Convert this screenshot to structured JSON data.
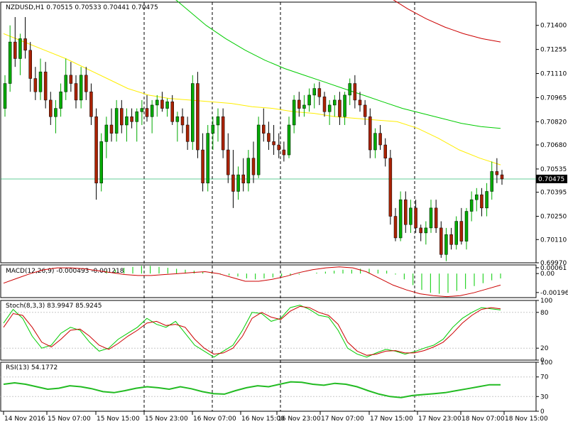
{
  "header": {
    "symbol": "NZDUSD,H1",
    "ohlc": "0.70515 0.70533 0.70441 0.70475"
  },
  "colors": {
    "background": "#ffffff",
    "axis": "#000000",
    "bull_candle": "#00aa00",
    "bear_candle": "#aa2200",
    "wick": "#000000",
    "ma_fast": "#ffee00",
    "ma_mid": "#00cc00",
    "ma_slow": "#cc0000",
    "price_line": "#00aa55",
    "macd_hist": "#00cc00",
    "macd_signal": "#cc0000",
    "stoch_main": "#00cc00",
    "stoch_signal": "#cc0000",
    "rsi_line": "#22bb22",
    "level_line": "#c8c8c8",
    "session_line": "#000000"
  },
  "chart_data": [
    {
      "type": "candlestick",
      "panel": "price",
      "title": "NZDUSD,H1  0.70515 0.70533 0.70441 0.70475",
      "ylim": [
        0.6997,
        0.7154
      ],
      "y_ticks": [
        "0.71400",
        "0.71255",
        "0.71110",
        "0.70965",
        "0.70820",
        "0.70680",
        "0.70535",
        "0.70395",
        "0.70250",
        "0.70110",
        "0.69970"
      ],
      "last_price": "0.70475",
      "x_ticks": [
        "14 Nov 2016",
        "15 Nov 07:00",
        "15 Nov 15:00",
        "15 Nov 23:00",
        "16 Nov 07:00",
        "16 Nov 15:00",
        "16 Nov 23:00",
        "17 Nov 07:00",
        "17 Nov 15:00",
        "17 Nov 23:00",
        "18 Nov 07:00",
        "18 Nov 15:00"
      ],
      "session_separators": [
        "15 Nov 07:00",
        "16 Nov 07:00",
        "17 Nov 07:00",
        "18 Nov 07:00"
      ],
      "candles": [
        [
          0.709,
          0.711,
          0.7085,
          0.7105
        ],
        [
          0.7105,
          0.714,
          0.71,
          0.713
        ],
        [
          0.713,
          0.7145,
          0.7115,
          0.712
        ],
        [
          0.712,
          0.7135,
          0.711,
          0.7132
        ],
        [
          0.7132,
          0.7145,
          0.712,
          0.7125
        ],
        [
          0.7125,
          0.713,
          0.71,
          0.7108
        ],
        [
          0.7108,
          0.7115,
          0.7095,
          0.71
        ],
        [
          0.71,
          0.712,
          0.7095,
          0.7112
        ],
        [
          0.7112,
          0.7118,
          0.709,
          0.7095
        ],
        [
          0.7095,
          0.71,
          0.708,
          0.7085
        ],
        [
          0.7085,
          0.7095,
          0.7075,
          0.709
        ],
        [
          0.709,
          0.7105,
          0.7085,
          0.71
        ],
        [
          0.71,
          0.712,
          0.7095,
          0.711
        ],
        [
          0.711,
          0.7118,
          0.71,
          0.7105
        ],
        [
          0.7105,
          0.711,
          0.709,
          0.7095
        ],
        [
          0.7095,
          0.7115,
          0.709,
          0.711
        ],
        [
          0.711,
          0.7115,
          0.7095,
          0.71
        ],
        [
          0.71,
          0.7105,
          0.708,
          0.7085
        ],
        [
          0.7085,
          0.709,
          0.7035,
          0.7045
        ],
        [
          0.7045,
          0.7075,
          0.704,
          0.707
        ],
        [
          0.707,
          0.7085,
          0.706,
          0.708
        ],
        [
          0.708,
          0.709,
          0.707,
          0.7075
        ],
        [
          0.7075,
          0.7095,
          0.707,
          0.709
        ],
        [
          0.709,
          0.7095,
          0.7075,
          0.708
        ],
        [
          0.708,
          0.709,
          0.707,
          0.7085
        ],
        [
          0.7085,
          0.709,
          0.7078,
          0.7082
        ],
        [
          0.7082,
          0.709,
          0.707,
          0.7088
        ],
        [
          0.7088,
          0.7095,
          0.708,
          0.709
        ],
        [
          0.709,
          0.7098,
          0.7082,
          0.7085
        ],
        [
          0.7085,
          0.7095,
          0.7075,
          0.7092
        ],
        [
          0.7092,
          0.7098,
          0.7085,
          0.7095
        ],
        [
          0.7095,
          0.71,
          0.7088,
          0.709
        ],
        [
          0.709,
          0.7096,
          0.7085,
          0.7094
        ],
        [
          0.7094,
          0.7098,
          0.708,
          0.7082
        ],
        [
          0.7082,
          0.7088,
          0.707,
          0.7085
        ],
        [
          0.7085,
          0.709,
          0.7075,
          0.708
        ],
        [
          0.708,
          0.7085,
          0.7065,
          0.707
        ],
        [
          0.707,
          0.711,
          0.7065,
          0.7105
        ],
        [
          0.7105,
          0.7112,
          0.706,
          0.7065
        ],
        [
          0.7065,
          0.7075,
          0.704,
          0.7045
        ],
        [
          0.7045,
          0.708,
          0.704,
          0.7075
        ],
        [
          0.7075,
          0.7085,
          0.7065,
          0.708
        ],
        [
          0.708,
          0.709,
          0.707,
          0.7085
        ],
        [
          0.7085,
          0.709,
          0.706,
          0.7065
        ],
        [
          0.7065,
          0.7075,
          0.7045,
          0.705
        ],
        [
          0.705,
          0.7065,
          0.703,
          0.704
        ],
        [
          0.704,
          0.7055,
          0.7035,
          0.705
        ],
        [
          0.705,
          0.706,
          0.704,
          0.7045
        ],
        [
          0.7045,
          0.7065,
          0.704,
          0.706
        ],
        [
          0.706,
          0.707,
          0.7045,
          0.705
        ],
        [
          0.705,
          0.7085,
          0.7048,
          0.708
        ],
        [
          0.708,
          0.709,
          0.707,
          0.7075
        ],
        [
          0.7075,
          0.7082,
          0.7065,
          0.707
        ],
        [
          0.707,
          0.708,
          0.7062,
          0.7068
        ],
        [
          0.7068,
          0.7075,
          0.706,
          0.7065
        ],
        [
          0.7065,
          0.707,
          0.7058,
          0.7062
        ],
        [
          0.7062,
          0.7085,
          0.706,
          0.708
        ],
        [
          0.708,
          0.7098,
          0.7075,
          0.7095
        ],
        [
          0.7095,
          0.71,
          0.7085,
          0.709
        ],
        [
          0.709,
          0.7098,
          0.7085,
          0.7092
        ],
        [
          0.7092,
          0.7102,
          0.7088,
          0.7098
        ],
        [
          0.7098,
          0.7105,
          0.709,
          0.7102
        ],
        [
          0.7102,
          0.7106,
          0.7092,
          0.7097
        ],
        [
          0.7097,
          0.71,
          0.7085,
          0.7088
        ],
        [
          0.7088,
          0.7095,
          0.708,
          0.7092
        ],
        [
          0.7092,
          0.7098,
          0.7085,
          0.7095
        ],
        [
          0.7095,
          0.71,
          0.708,
          0.7085
        ],
        [
          0.7085,
          0.71,
          0.708,
          0.7098
        ],
        [
          0.7098,
          0.7108,
          0.7092,
          0.7105
        ],
        [
          0.7105,
          0.711,
          0.709,
          0.7095
        ],
        [
          0.7095,
          0.71,
          0.7088,
          0.7092
        ],
        [
          0.7092,
          0.7095,
          0.708,
          0.7085
        ],
        [
          0.7085,
          0.709,
          0.706,
          0.7065
        ],
        [
          0.7065,
          0.7078,
          0.706,
          0.7075
        ],
        [
          0.7075,
          0.708,
          0.7065,
          0.7068
        ],
        [
          0.7068,
          0.7072,
          0.7055,
          0.706
        ],
        [
          0.706,
          0.7065,
          0.702,
          0.7025
        ],
        [
          0.7025,
          0.703,
          0.701,
          0.7012
        ],
        [
          0.7012,
          0.704,
          0.701,
          0.7035
        ],
        [
          0.7035,
          0.704,
          0.7015,
          0.702
        ],
        [
          0.702,
          0.7035,
          0.7015,
          0.703
        ],
        [
          0.703,
          0.7035,
          0.7015,
          0.7018
        ],
        [
          0.7018,
          0.702,
          0.701,
          0.7015
        ],
        [
          0.7015,
          0.7022,
          0.7008,
          0.7018
        ],
        [
          0.7018,
          0.7035,
          0.7015,
          0.703
        ],
        [
          0.703,
          0.7035,
          0.7015,
          0.7018
        ],
        [
          0.7018,
          0.7022,
          0.7,
          0.7002
        ],
        [
          0.7002,
          0.7018,
          0.6998,
          0.7014
        ],
        [
          0.7014,
          0.7018,
          0.7005,
          0.7008
        ],
        [
          0.7008,
          0.7025,
          0.7005,
          0.7022
        ],
        [
          0.7022,
          0.703,
          0.7008,
          0.701
        ],
        [
          0.701,
          0.703,
          0.7005,
          0.7028
        ],
        [
          0.7028,
          0.704,
          0.7022,
          0.7035
        ],
        [
          0.7035,
          0.7042,
          0.7028,
          0.7038
        ],
        [
          0.7038,
          0.7042,
          0.7025,
          0.703
        ],
        [
          0.703,
          0.7045,
          0.7025,
          0.704
        ],
        [
          0.704,
          0.7058,
          0.7035,
          0.7052
        ],
        [
          0.7052,
          0.706,
          0.7045,
          0.705
        ],
        [
          0.705,
          0.7053,
          0.7044,
          0.70475
        ]
      ],
      "moving_averages": [
        {
          "color_key": "ma_fast",
          "values": [
            0.7135,
            0.713,
            0.7125,
            0.712,
            0.7114,
            0.7108,
            0.7102,
            0.7098,
            0.7096,
            0.7095,
            0.7094,
            0.7093,
            0.7091,
            0.709,
            0.7088,
            0.7087,
            0.7085,
            0.7084,
            0.7083,
            0.7082,
            0.7078,
            0.7072,
            0.7065,
            0.706,
            0.7056
          ]
        },
        {
          "color_key": "ma_mid",
          "values": [
            0.716,
            0.715,
            0.714,
            0.7132,
            0.7125,
            0.7119,
            0.7114,
            0.711,
            0.7106,
            0.7102,
            0.7098,
            0.7094,
            0.709,
            0.7087,
            0.7084,
            0.7081,
            0.7079,
            0.7078
          ]
        },
        {
          "color_key": "ma_slow",
          "values": [
            0.7157,
            0.715,
            0.7144,
            0.7139,
            0.7135,
            0.7132,
            0.713
          ]
        }
      ]
    },
    {
      "type": "bar",
      "panel": "macd",
      "title": "MACD(12,26,9) -0.000493 -0.001218",
      "y_ticks": [
        "0.00061",
        "0.00",
        "-0.001969"
      ],
      "ylim": [
        -0.0025,
        0.0009
      ],
      "histogram": [
        0.0003,
        0.0004,
        0.0006,
        0.0007,
        0.0008,
        0.0008,
        0.0007,
        0.0006,
        0.0005,
        0.0004,
        0.0003,
        0.0002,
        0.0001,
        -0.0001,
        -0.0002,
        -0.0003,
        -0.0005,
        -0.0006,
        -0.0005,
        -0.0004,
        -0.0003,
        -0.0002,
        -0.0001,
        0.0,
        0.0001,
        0.0002,
        0.0003,
        0.0004,
        0.0004,
        0.0005,
        0.0005,
        0.0004,
        0.0003,
        -0.0001,
        -0.0006,
        -0.0012,
        -0.0017,
        -0.002,
        -0.0021,
        -0.002,
        -0.0018,
        -0.0016,
        -0.0013,
        -0.001,
        -0.0007,
        -0.0005
      ],
      "signal": [
        -0.001,
        -0.0005,
        0.0,
        0.0004,
        0.0006,
        0.0006,
        0.0005,
        0.0003,
        0.0001,
        -0.0001,
        -0.0002,
        -0.0002,
        -0.0001,
        0.0,
        0.0001,
        0.0002,
        0.0,
        -0.0004,
        -0.0008,
        -0.0008,
        -0.0006,
        -0.0003,
        0.0001,
        0.0004,
        0.0006,
        0.0007,
        0.0006,
        0.0002,
        -0.0005,
        -0.0012,
        -0.0017,
        -0.0021,
        -0.0023,
        -0.0024,
        -0.0023,
        -0.002,
        -0.0016,
        -0.0012
      ]
    },
    {
      "type": "line",
      "panel": "stochastic",
      "title": "Stoch(8,3,3) 83.9947 85.9245",
      "y_ticks": [
        "100",
        "80",
        "20",
        "0"
      ],
      "ylim": [
        0,
        100
      ],
      "levels": [
        80,
        20
      ],
      "series": [
        {
          "color_key": "stoch_main",
          "values": [
            62,
            85,
            70,
            40,
            20,
            25,
            45,
            55,
            50,
            30,
            15,
            20,
            35,
            45,
            55,
            70,
            60,
            55,
            65,
            45,
            25,
            15,
            5,
            15,
            25,
            50,
            80,
            78,
            65,
            70,
            88,
            92,
            85,
            75,
            72,
            50,
            20,
            10,
            5,
            12,
            18,
            15,
            10,
            14,
            20,
            25,
            35,
            55,
            70,
            80,
            88,
            86,
            84
          ]
        },
        {
          "color_key": "stoch_signal",
          "values": [
            55,
            78,
            75,
            55,
            30,
            22,
            35,
            50,
            52,
            40,
            25,
            18,
            28,
            40,
            50,
            62,
            65,
            58,
            60,
            55,
            35,
            20,
            10,
            12,
            20,
            40,
            70,
            80,
            72,
            68,
            82,
            90,
            88,
            80,
            75,
            60,
            30,
            15,
            8,
            10,
            15,
            16,
            12,
            12,
            16,
            22,
            30,
            45,
            62,
            75,
            85,
            88,
            86
          ]
        }
      ]
    },
    {
      "type": "line",
      "panel": "rsi",
      "title": "RSI(13) 54.1772",
      "y_ticks": [
        "100",
        "70",
        "30",
        "0"
      ],
      "ylim": [
        0,
        100
      ],
      "levels": [
        70,
        30
      ],
      "series": [
        {
          "color_key": "rsi_line",
          "values": [
            55,
            58,
            55,
            50,
            45,
            47,
            52,
            50,
            46,
            40,
            38,
            42,
            47,
            50,
            48,
            45,
            50,
            46,
            40,
            36,
            35,
            42,
            48,
            52,
            50,
            55,
            60,
            59,
            55,
            53,
            57,
            55,
            50,
            42,
            35,
            30,
            28,
            32,
            34,
            36,
            38,
            42,
            46,
            50,
            54,
            54
          ]
        }
      ]
    }
  ]
}
